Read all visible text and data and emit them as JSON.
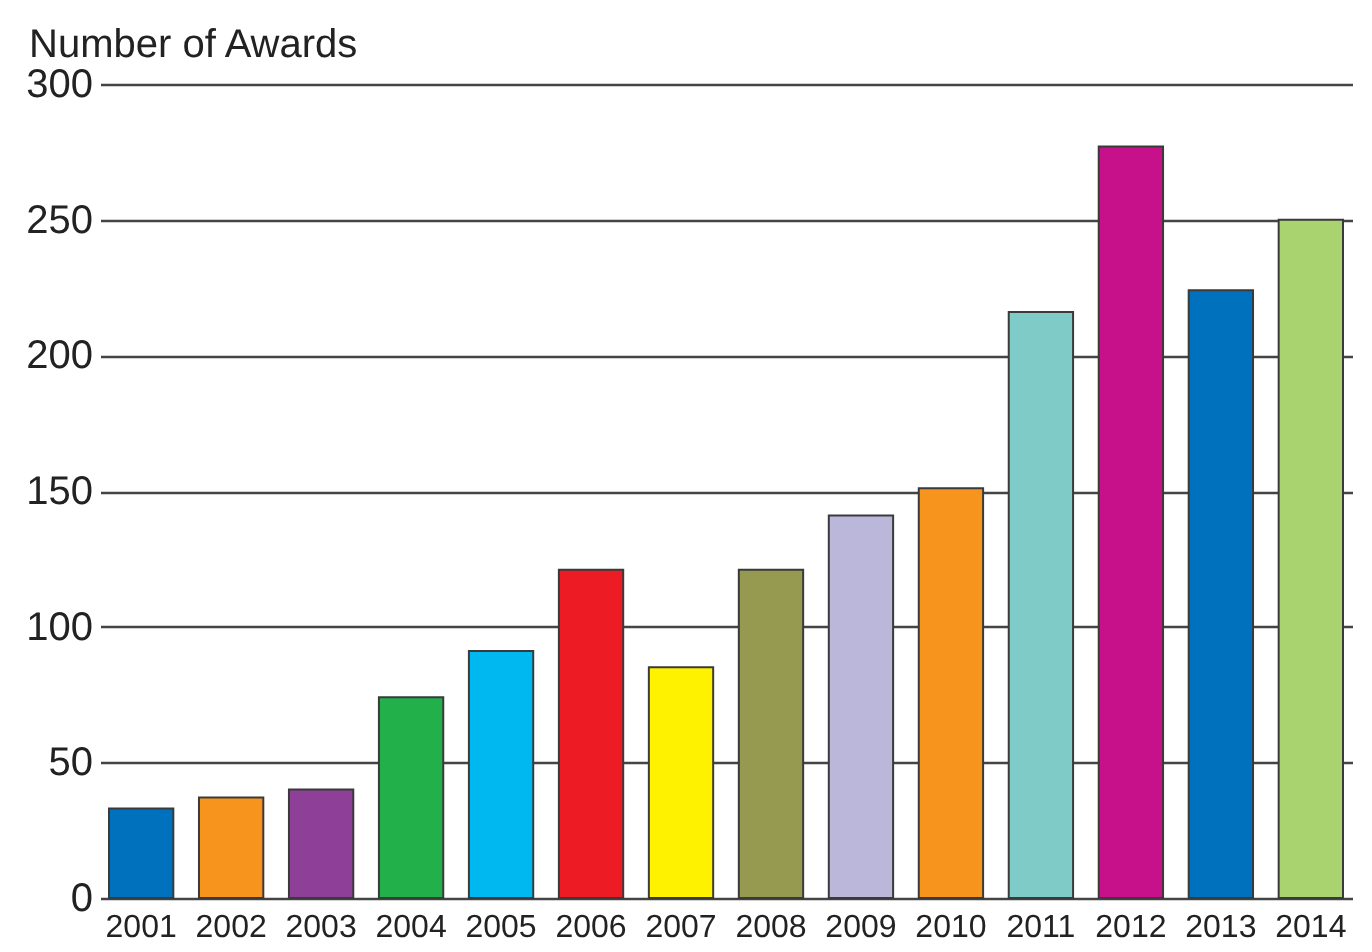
{
  "chart_data": {
    "type": "bar",
    "ylabel": "Number of Awards",
    "categories": [
      "2001",
      "2002",
      "2003",
      "2004",
      "2005",
      "2006",
      "2007",
      "2008",
      "2009",
      "2010",
      "2011",
      "2012",
      "2013",
      "2014"
    ],
    "values": [
      33,
      37,
      40,
      74,
      91,
      121,
      85,
      121,
      141,
      151,
      216,
      277,
      224,
      250
    ],
    "colors": [
      "#0071bc",
      "#f7941d",
      "#8e3f97",
      "#22b04b",
      "#00b8f0",
      "#ed1c24",
      "#fff200",
      "#969a50",
      "#bab7da",
      "#f7941d",
      "#7ecbc8",
      "#c7118a",
      "#0071bc",
      "#a8d36e"
    ],
    "ylim": [
      0,
      300
    ],
    "yticks": [
      0,
      50,
      100,
      150,
      200,
      250,
      300
    ],
    "grid": "y"
  }
}
